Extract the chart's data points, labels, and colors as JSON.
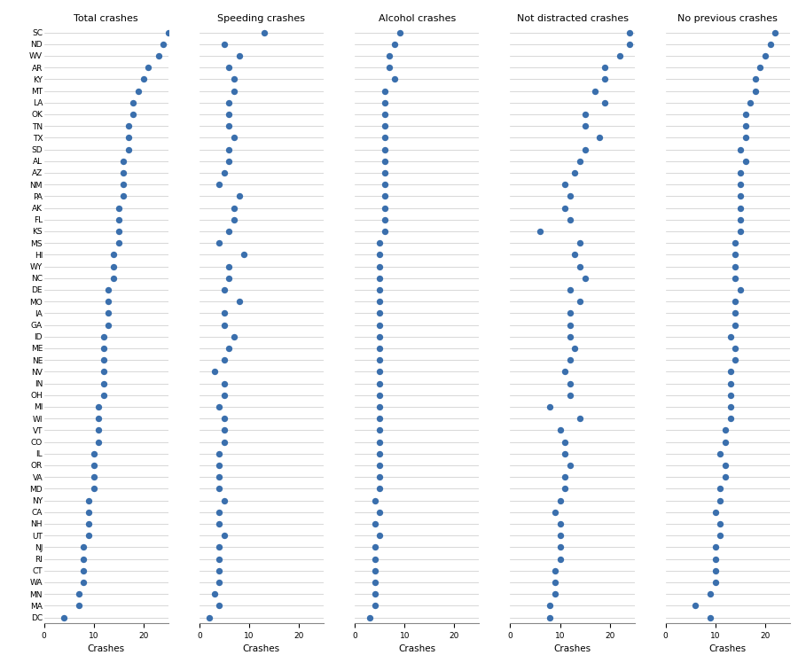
{
  "states": [
    "SC",
    "ND",
    "WV",
    "AR",
    "KY",
    "MT",
    "LA",
    "OK",
    "TN",
    "TX",
    "SD",
    "AL",
    "AZ",
    "NM",
    "PA",
    "AK",
    "FL",
    "KS",
    "MS",
    "HI",
    "WY",
    "NC",
    "DE",
    "MO",
    "IA",
    "GA",
    "ID",
    "ME",
    "NE",
    "NV",
    "IN",
    "OH",
    "MI",
    "WI",
    "VT",
    "CO",
    "IL",
    "OR",
    "VA",
    "MD",
    "NY",
    "CA",
    "NH",
    "UT",
    "NJ",
    "RI",
    "CT",
    "WA",
    "MN",
    "MA",
    "DC"
  ],
  "total_crashes": [
    25,
    24,
    23,
    21,
    20,
    19,
    18,
    18,
    17,
    17,
    17,
    16,
    16,
    16,
    16,
    15,
    15,
    15,
    15,
    14,
    14,
    14,
    13,
    13,
    13,
    13,
    12,
    12,
    12,
    12,
    12,
    12,
    11,
    11,
    11,
    11,
    10,
    10,
    10,
    10,
    9,
    9,
    9,
    9,
    8,
    8,
    8,
    8,
    7,
    7,
    4
  ],
  "speeding_crashes": [
    13,
    5,
    8,
    6,
    7,
    7,
    6,
    6,
    6,
    7,
    6,
    6,
    5,
    4,
    8,
    7,
    7,
    6,
    4,
    9,
    6,
    6,
    5,
    8,
    5,
    5,
    7,
    6,
    5,
    3,
    5,
    5,
    4,
    5,
    5,
    5,
    4,
    4,
    4,
    4,
    5,
    4,
    4,
    5,
    4,
    4,
    4,
    4,
    3,
    4,
    2
  ],
  "alcohol_crashes": [
    9,
    8,
    7,
    7,
    8,
    6,
    6,
    6,
    6,
    6,
    6,
    6,
    6,
    6,
    6,
    6,
    6,
    6,
    5,
    5,
    5,
    5,
    5,
    5,
    5,
    5,
    5,
    5,
    5,
    5,
    5,
    5,
    5,
    5,
    5,
    5,
    5,
    5,
    5,
    5,
    4,
    5,
    4,
    5,
    4,
    4,
    4,
    4,
    4,
    4,
    3
  ],
  "not_distracted_crashes": [
    24,
    24,
    22,
    19,
    19,
    17,
    19,
    15,
    15,
    18,
    15,
    14,
    13,
    11,
    12,
    11,
    12,
    6,
    14,
    13,
    14,
    15,
    12,
    14,
    12,
    12,
    12,
    13,
    12,
    11,
    12,
    12,
    8,
    14,
    10,
    11,
    11,
    12,
    11,
    11,
    10,
    9,
    10,
    10,
    10,
    10,
    9,
    9,
    9,
    8,
    8
  ],
  "no_previous_crashes": [
    22,
    21,
    20,
    19,
    18,
    18,
    17,
    16,
    16,
    16,
    15,
    16,
    15,
    15,
    15,
    15,
    15,
    15,
    14,
    14,
    14,
    14,
    15,
    14,
    14,
    14,
    13,
    14,
    14,
    13,
    13,
    13,
    13,
    13,
    12,
    12,
    11,
    12,
    12,
    11,
    11,
    10,
    11,
    11,
    10,
    10,
    10,
    10,
    9,
    6,
    9
  ],
  "titles": [
    "Total crashes",
    "Speeding crashes",
    "Alcohol crashes",
    "Not distracted crashes",
    "No previous crashes"
  ],
  "xlims": [
    0,
    25
  ],
  "xticks": [
    0,
    10,
    20
  ],
  "dot_color": "#3a6fad",
  "background_color": "#ffffff",
  "grid_color": "#c8c8c8",
  "dot_size": 28,
  "title_fontsize": 8,
  "tick_fontsize": 6.5,
  "xlabel_fontsize": 7.5
}
